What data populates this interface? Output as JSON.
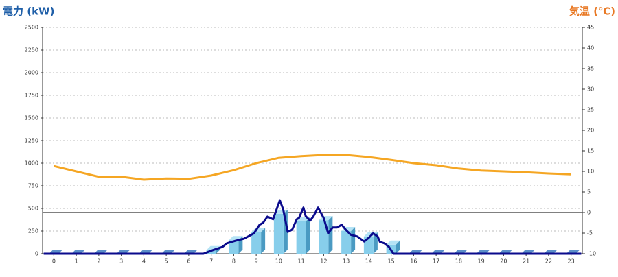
{
  "chart_data": {
    "type": "combo",
    "y_label": "電力 (kW)",
    "y_label_color": "#1f5fa8",
    "y2_label": "気温 (℃)",
    "y2_label_color": "#e87722",
    "categories": [
      "0",
      "1",
      "2",
      "3",
      "4",
      "5",
      "6",
      "7",
      "8",
      "9",
      "10",
      "11",
      "12",
      "13",
      "14",
      "15",
      "16",
      "17",
      "18",
      "19",
      "20",
      "21",
      "22",
      "23"
    ],
    "ylim": [
      0,
      2500
    ],
    "yticks": [
      0,
      250,
      500,
      750,
      1000,
      1250,
      1500,
      1750,
      2000,
      2250,
      2500
    ],
    "y2lim": [
      -10,
      45
    ],
    "y2ticks": [
      -10,
      -5,
      0,
      5,
      10,
      15,
      20,
      25,
      30,
      35,
      40,
      45
    ],
    "grid": true,
    "series": [
      {
        "type": "bar",
        "color": "#87ceeb",
        "values": [
          0,
          0,
          0,
          0,
          0,
          0,
          0,
          40,
          150,
          240,
          440,
          360,
          370,
          250,
          190,
          100,
          0,
          0,
          0,
          0,
          0,
          0,
          0,
          0
        ]
      },
      {
        "type": "line",
        "color": "#0a0a8c",
        "x": [
          -0.45,
          6.65,
          7.08,
          7.5,
          7.7,
          8.1,
          8.45,
          8.9,
          9.15,
          9.3,
          9.5,
          9.75,
          10.05,
          10.2,
          10.4,
          10.6,
          10.8,
          10.9,
          11.1,
          11.2,
          11.4,
          11.55,
          11.75,
          12.0,
          12.2,
          12.4,
          12.6,
          12.8,
          13.0,
          13.2,
          13.5,
          13.8,
          14.0,
          14.2,
          14.4,
          14.5,
          14.7,
          14.9,
          15.1,
          23.45
        ],
        "values": [
          0,
          0,
          40,
          75,
          115,
          145,
          165,
          225,
          320,
          340,
          410,
          380,
          590,
          490,
          240,
          265,
          380,
          395,
          510,
          415,
          365,
          415,
          510,
          395,
          225,
          290,
          290,
          320,
          260,
          210,
          190,
          135,
          175,
          225,
          190,
          130,
          115,
          75,
          0,
          0
        ]
      },
      {
        "type": "line",
        "axis": "y2",
        "color": "#f5a623",
        "values": [
          11.3,
          10,
          8.7,
          8.7,
          8,
          8.3,
          8.2,
          9,
          10.3,
          12,
          13.3,
          13.7,
          14,
          14,
          13.5,
          12.8,
          12,
          11.5,
          10.7,
          10.2,
          10,
          9.8,
          9.5,
          9.3
        ]
      }
    ]
  }
}
